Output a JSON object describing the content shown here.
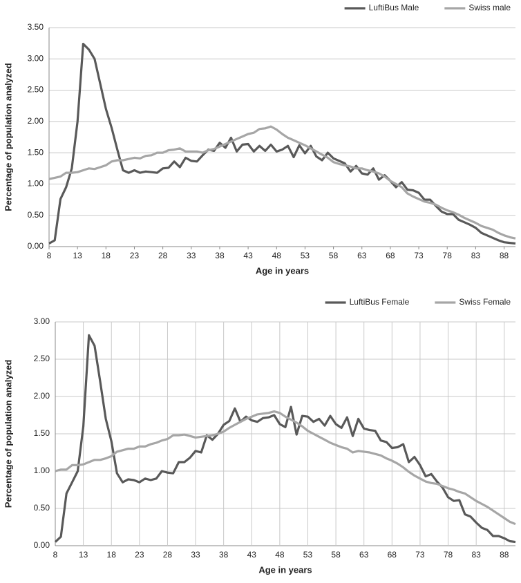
{
  "chart_data": [
    {
      "type": "line",
      "x": [
        8,
        9,
        10,
        11,
        12,
        13,
        14,
        15,
        16,
        17,
        18,
        19,
        20,
        21,
        22,
        23,
        24,
        25,
        26,
        27,
        28,
        29,
        30,
        31,
        32,
        33,
        34,
        35,
        36,
        37,
        38,
        39,
        40,
        41,
        42,
        43,
        44,
        45,
        46,
        47,
        48,
        49,
        50,
        51,
        52,
        53,
        54,
        55,
        56,
        57,
        58,
        59,
        60,
        61,
        62,
        63,
        64,
        65,
        66,
        67,
        68,
        69,
        70,
        71,
        72,
        73,
        74,
        75,
        76,
        77,
        78,
        79,
        80,
        81,
        82,
        83,
        84,
        85,
        86,
        87,
        88,
        89,
        90
      ],
      "series": [
        {
          "name": "LuftiBus Male",
          "color": "#595959",
          "values": [
            0.05,
            0.1,
            0.76,
            0.95,
            1.25,
            2.0,
            3.24,
            3.15,
            3.0,
            2.6,
            2.2,
            1.9,
            1.55,
            1.22,
            1.18,
            1.22,
            1.18,
            1.2,
            1.19,
            1.18,
            1.25,
            1.26,
            1.36,
            1.27,
            1.42,
            1.37,
            1.36,
            1.46,
            1.55,
            1.53,
            1.66,
            1.58,
            1.74,
            1.52,
            1.63,
            1.64,
            1.52,
            1.61,
            1.53,
            1.63,
            1.52,
            1.55,
            1.61,
            1.43,
            1.62,
            1.49,
            1.61,
            1.44,
            1.38,
            1.5,
            1.41,
            1.37,
            1.33,
            1.2,
            1.29,
            1.17,
            1.15,
            1.25,
            1.07,
            1.14,
            1.05,
            0.95,
            1.03,
            0.91,
            0.9,
            0.86,
            0.75,
            0.75,
            0.65,
            0.56,
            0.52,
            0.52,
            0.43,
            0.39,
            0.35,
            0.3,
            0.22,
            0.18,
            0.14,
            0.1,
            0.07,
            0.06,
            0.05
          ]
        },
        {
          "name": "Swiss male",
          "color": "#a6a6a6",
          "values": [
            1.08,
            1.1,
            1.12,
            1.18,
            1.18,
            1.19,
            1.22,
            1.25,
            1.24,
            1.27,
            1.3,
            1.36,
            1.38,
            1.38,
            1.4,
            1.42,
            1.41,
            1.45,
            1.46,
            1.5,
            1.5,
            1.54,
            1.55,
            1.57,
            1.52,
            1.52,
            1.52,
            1.5,
            1.54,
            1.56,
            1.6,
            1.64,
            1.68,
            1.72,
            1.76,
            1.8,
            1.82,
            1.88,
            1.89,
            1.92,
            1.87,
            1.8,
            1.74,
            1.7,
            1.66,
            1.62,
            1.57,
            1.52,
            1.47,
            1.42,
            1.35,
            1.32,
            1.3,
            1.28,
            1.25,
            1.25,
            1.22,
            1.2,
            1.17,
            1.12,
            1.05,
            1.0,
            0.95,
            0.85,
            0.8,
            0.76,
            0.72,
            0.7,
            0.67,
            0.62,
            0.58,
            0.55,
            0.51,
            0.46,
            0.42,
            0.38,
            0.33,
            0.3,
            0.27,
            0.22,
            0.18,
            0.15,
            0.13
          ]
        }
      ],
      "xlabel": "Age in years",
      "ylabel": "Percentage of population analyzed",
      "xlim": [
        8,
        90
      ],
      "xticks": [
        8,
        13,
        18,
        23,
        28,
        33,
        38,
        43,
        48,
        53,
        58,
        63,
        68,
        73,
        78,
        83,
        88
      ],
      "ylim": [
        0,
        3.5
      ],
      "yticks": [
        {
          "value": 0,
          "label": "0.00"
        },
        {
          "value": 0.5,
          "label": "0.50"
        },
        {
          "value": 1,
          "label": "1.00"
        },
        {
          "value": 1.5,
          "label": "1.50"
        },
        {
          "value": 2,
          "label": "2.00"
        },
        {
          "value": 2.5,
          "label": "2.50"
        },
        {
          "value": 3,
          "label": "3.00"
        },
        {
          "value": 3.5,
          "label": "3.50"
        }
      ],
      "grid": "y",
      "legend": "top-right"
    },
    {
      "type": "line",
      "x": [
        8,
        9,
        10,
        11,
        12,
        13,
        14,
        15,
        16,
        17,
        18,
        19,
        20,
        21,
        22,
        23,
        24,
        25,
        26,
        27,
        28,
        29,
        30,
        31,
        32,
        33,
        34,
        35,
        36,
        37,
        38,
        39,
        40,
        41,
        42,
        43,
        44,
        45,
        46,
        47,
        48,
        49,
        50,
        51,
        52,
        53,
        54,
        55,
        56,
        57,
        58,
        59,
        60,
        61,
        62,
        63,
        64,
        65,
        66,
        67,
        68,
        69,
        70,
        71,
        72,
        73,
        74,
        75,
        76,
        77,
        78,
        79,
        80,
        81,
        82,
        83,
        84,
        85,
        86,
        87,
        88,
        89,
        90
      ],
      "series": [
        {
          "name": "LuftiBus Female",
          "color": "#595959",
          "values": [
            0.05,
            0.12,
            0.7,
            0.85,
            1.0,
            1.6,
            2.82,
            2.68,
            2.2,
            1.7,
            1.4,
            0.97,
            0.85,
            0.89,
            0.88,
            0.85,
            0.9,
            0.88,
            0.9,
            1.0,
            0.98,
            0.97,
            1.12,
            1.12,
            1.18,
            1.27,
            1.25,
            1.48,
            1.42,
            1.5,
            1.62,
            1.67,
            1.84,
            1.66,
            1.73,
            1.68,
            1.66,
            1.71,
            1.72,
            1.75,
            1.63,
            1.59,
            1.86,
            1.49,
            1.74,
            1.73,
            1.66,
            1.7,
            1.61,
            1.74,
            1.63,
            1.58,
            1.72,
            1.47,
            1.7,
            1.57,
            1.55,
            1.54,
            1.41,
            1.39,
            1.31,
            1.32,
            1.36,
            1.12,
            1.19,
            1.08,
            0.93,
            0.96,
            0.86,
            0.78,
            0.65,
            0.6,
            0.61,
            0.42,
            0.39,
            0.31,
            0.24,
            0.21,
            0.13,
            0.13,
            0.1,
            0.06,
            0.05
          ]
        },
        {
          "name": "Swiss Female",
          "color": "#a6a6a6",
          "values": [
            1.0,
            1.02,
            1.02,
            1.08,
            1.08,
            1.09,
            1.12,
            1.15,
            1.15,
            1.17,
            1.2,
            1.26,
            1.28,
            1.3,
            1.3,
            1.33,
            1.33,
            1.36,
            1.38,
            1.41,
            1.43,
            1.48,
            1.48,
            1.49,
            1.47,
            1.45,
            1.46,
            1.47,
            1.48,
            1.5,
            1.53,
            1.58,
            1.62,
            1.66,
            1.7,
            1.73,
            1.76,
            1.77,
            1.78,
            1.8,
            1.78,
            1.73,
            1.69,
            1.65,
            1.6,
            1.54,
            1.5,
            1.46,
            1.42,
            1.38,
            1.35,
            1.32,
            1.3,
            1.25,
            1.27,
            1.26,
            1.25,
            1.23,
            1.21,
            1.17,
            1.14,
            1.1,
            1.05,
            0.99,
            0.94,
            0.9,
            0.86,
            0.84,
            0.83,
            0.8,
            0.77,
            0.75,
            0.72,
            0.7,
            0.65,
            0.6,
            0.56,
            0.52,
            0.47,
            0.42,
            0.37,
            0.32,
            0.29
          ]
        }
      ],
      "xlabel": "Age in years",
      "ylabel": "Percentage of population analyzed",
      "xlim": [
        8,
        90
      ],
      "xticks": [
        8,
        13,
        18,
        23,
        28,
        33,
        38,
        43,
        48,
        53,
        58,
        63,
        68,
        73,
        78,
        83,
        88
      ],
      "ylim": [
        0,
        3
      ],
      "yticks": [
        {
          "value": 0,
          "label": "0.00"
        },
        {
          "value": 0.5,
          "label": "0.50"
        },
        {
          "value": 1,
          "label": "1.00"
        },
        {
          "value": 1.5,
          "label": "1.50"
        },
        {
          "value": 2,
          "label": "2.00"
        },
        {
          "value": 2.5,
          "label": "2.50"
        },
        {
          "value": 3,
          "label": "3.00"
        }
      ],
      "grid": "both",
      "legend": "top-right"
    }
  ]
}
